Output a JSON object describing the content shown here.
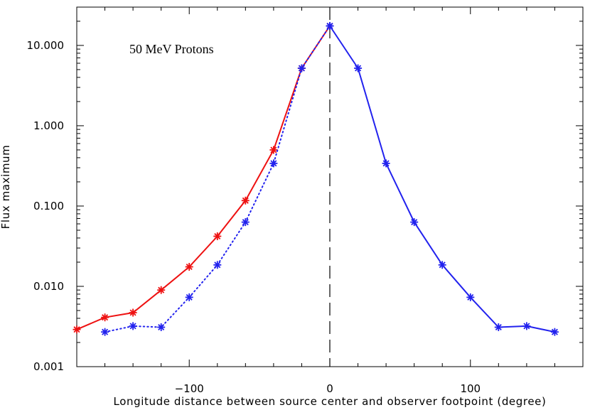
{
  "chart_data": {
    "type": "line",
    "title": "50 MeV Protons",
    "xlabel": "Longitude distance between source center and observer footpoint (degree)",
    "ylabel": "Flux maximum",
    "xlim": [
      -180,
      180
    ],
    "ylim": [
      0.001,
      30
    ],
    "yscale": "log",
    "x_ticks": [
      -100,
      0,
      100
    ],
    "x_tick_labels": [
      "−100",
      "0",
      "100"
    ],
    "y_ticks": [
      0.001,
      0.01,
      0.1,
      1,
      10
    ],
    "y_tick_labels": [
      "0.001",
      "0.010",
      "0.100",
      "1.000",
      "10.000"
    ],
    "reference_line": {
      "x": 0,
      "style": "dashed"
    },
    "series": [
      {
        "name": "red",
        "color": "#ee1111",
        "line_style": "solid",
        "marker": "asterisk",
        "x": [
          -180,
          -160,
          -140,
          -120,
          -100,
          -80,
          -60,
          -40,
          -20,
          0
        ],
        "y": [
          0.0029,
          0.0041,
          0.0047,
          0.009,
          0.0175,
          0.042,
          0.117,
          0.5,
          5.2,
          17.5
        ]
      },
      {
        "name": "blue-dotted",
        "color": "#2222ee",
        "line_style": "dotted",
        "marker": "asterisk",
        "x": [
          -160,
          -140,
          -120,
          -100,
          -80,
          -60,
          -40,
          -20,
          0
        ],
        "y": [
          0.0027,
          0.0032,
          0.0031,
          0.0073,
          0.0185,
          0.063,
          0.34,
          5.2,
          17.5
        ]
      },
      {
        "name": "blue-solid",
        "color": "#2222ee",
        "line_style": "solid",
        "marker": "asterisk",
        "x": [
          0,
          20,
          40,
          60,
          80,
          100,
          120,
          140,
          160
        ],
        "y": [
          17.5,
          5.2,
          0.34,
          0.063,
          0.0185,
          0.0073,
          0.0031,
          0.0032,
          0.0027
        ]
      }
    ]
  }
}
